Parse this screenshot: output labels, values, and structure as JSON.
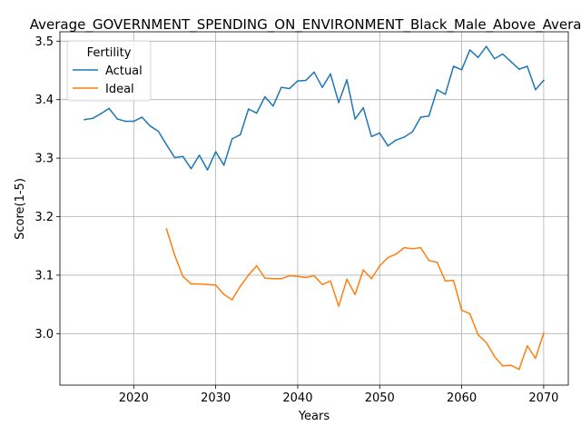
{
  "chart_data": {
    "type": "line",
    "title": "Average_GOVERNMENT_SPENDING_ON_ENVIRONMENT_Black_Male_Above_Average",
    "xlabel": "Years",
    "ylabel": "Score(1-5)",
    "xlim": [
      2011,
      2073
    ],
    "ylim": [
      2.912,
      3.516
    ],
    "xticks": [
      2020,
      2030,
      2040,
      2050,
      2060,
      2070
    ],
    "yticks": [
      3.0,
      3.1,
      3.2,
      3.3,
      3.4,
      3.5
    ],
    "grid": true,
    "legend": {
      "title": "Fertility",
      "placement": "upper-left"
    },
    "series": [
      {
        "name": "Actual",
        "color": "#1f77b4",
        "x": [
          2014,
          2015,
          2016,
          2017,
          2018,
          2019,
          2020,
          2021,
          2022,
          2023,
          2024,
          2025,
          2026,
          2027,
          2028,
          2029,
          2030,
          2031,
          2032,
          2033,
          2034,
          2035,
          2036,
          2037,
          2038,
          2039,
          2040,
          2041,
          2042,
          2043,
          2044,
          2045,
          2046,
          2047,
          2048,
          2049,
          2050,
          2051,
          2052,
          2053,
          2054,
          2055,
          2056,
          2057,
          2058,
          2059,
          2060,
          2061,
          2062,
          2063,
          2064,
          2065,
          2066,
          2067,
          2068,
          2069,
          2070
        ],
        "values": [
          3.366,
          3.368,
          3.376,
          3.385,
          3.367,
          3.363,
          3.363,
          3.37,
          3.355,
          3.346,
          3.323,
          3.301,
          3.303,
          3.282,
          3.305,
          3.28,
          3.311,
          3.288,
          3.333,
          3.34,
          3.384,
          3.377,
          3.405,
          3.389,
          3.421,
          3.419,
          3.432,
          3.433,
          3.447,
          3.421,
          3.444,
          3.395,
          3.434,
          3.367,
          3.386,
          3.337,
          3.343,
          3.321,
          3.331,
          3.336,
          3.345,
          3.37,
          3.372,
          3.417,
          3.409,
          3.457,
          3.451,
          3.485,
          3.472,
          3.491,
          3.47,
          3.478,
          3.465,
          3.452,
          3.457,
          3.417,
          3.433
        ]
      },
      {
        "name": "Ideal",
        "color": "#ff7f0e",
        "x": [
          2024,
          2025,
          2026,
          2027,
          2028,
          2029,
          2030,
          2031,
          2032,
          2033,
          2034,
          2035,
          2036,
          2037,
          2038,
          2039,
          2040,
          2041,
          2042,
          2043,
          2044,
          2045,
          2046,
          2047,
          2048,
          2049,
          2050,
          2051,
          2052,
          2053,
          2054,
          2055,
          2056,
          2057,
          2058,
          2059,
          2060,
          2061,
          2062,
          2063,
          2064,
          2065,
          2066,
          2067,
          2068,
          2069,
          2070
        ],
        "values": [
          3.179,
          3.134,
          3.098,
          3.085,
          3.085,
          3.084,
          3.083,
          3.067,
          3.058,
          3.081,
          3.1,
          3.116,
          3.095,
          3.094,
          3.094,
          3.099,
          3.098,
          3.096,
          3.099,
          3.084,
          3.09,
          3.047,
          3.093,
          3.067,
          3.109,
          3.094,
          3.116,
          3.13,
          3.136,
          3.147,
          3.145,
          3.147,
          3.125,
          3.122,
          3.09,
          3.091,
          3.04,
          3.034,
          2.998,
          2.985,
          2.961,
          2.945,
          2.946,
          2.939,
          2.979,
          2.958,
          3.001
        ]
      }
    ]
  }
}
